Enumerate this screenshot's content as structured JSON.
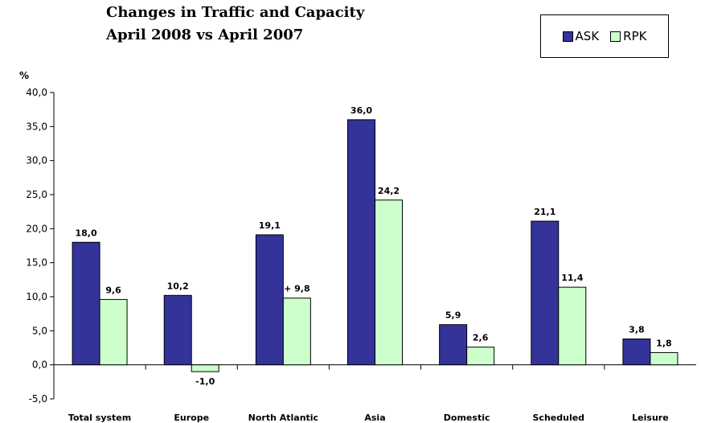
{
  "chart_data": {
    "type": "bar",
    "title_lines": [
      "Changes in Traffic and Capacity",
      "April 2008 vs April 2007"
    ],
    "ylabel": "%",
    "ylim": [
      -5,
      40
    ],
    "y_ticks": [
      "40,0",
      "35,0",
      "30,0",
      "25,0",
      "20,0",
      "15,0",
      "10,0",
      "5,0",
      "0,0",
      "-5,0"
    ],
    "y_tick_values": [
      40,
      35,
      30,
      25,
      20,
      15,
      10,
      5,
      0,
      -5
    ],
    "categories": [
      "Total system",
      "Europe",
      "North Atlantic",
      "Asia",
      "Domestic",
      "Scheduled",
      "Leisure"
    ],
    "series": [
      {
        "name": "ASK",
        "color": "#333399",
        "values": [
          18.0,
          10.2,
          19.1,
          36.0,
          5.9,
          21.1,
          3.8
        ],
        "labels": [
          "18,0",
          "10,2",
          "19,1",
          "36,0",
          "5,9",
          "21,1",
          "3,8"
        ]
      },
      {
        "name": "RPK",
        "color": "#ccffcc",
        "values": [
          9.6,
          -1.0,
          9.8,
          24.2,
          2.6,
          11.4,
          1.8
        ],
        "labels": [
          "9,6",
          "-1,0",
          "+ 9,8",
          "24,2",
          "2,6",
          "11,4",
          "1,8"
        ]
      }
    ],
    "legend_position": "top-right",
    "grid": false
  }
}
